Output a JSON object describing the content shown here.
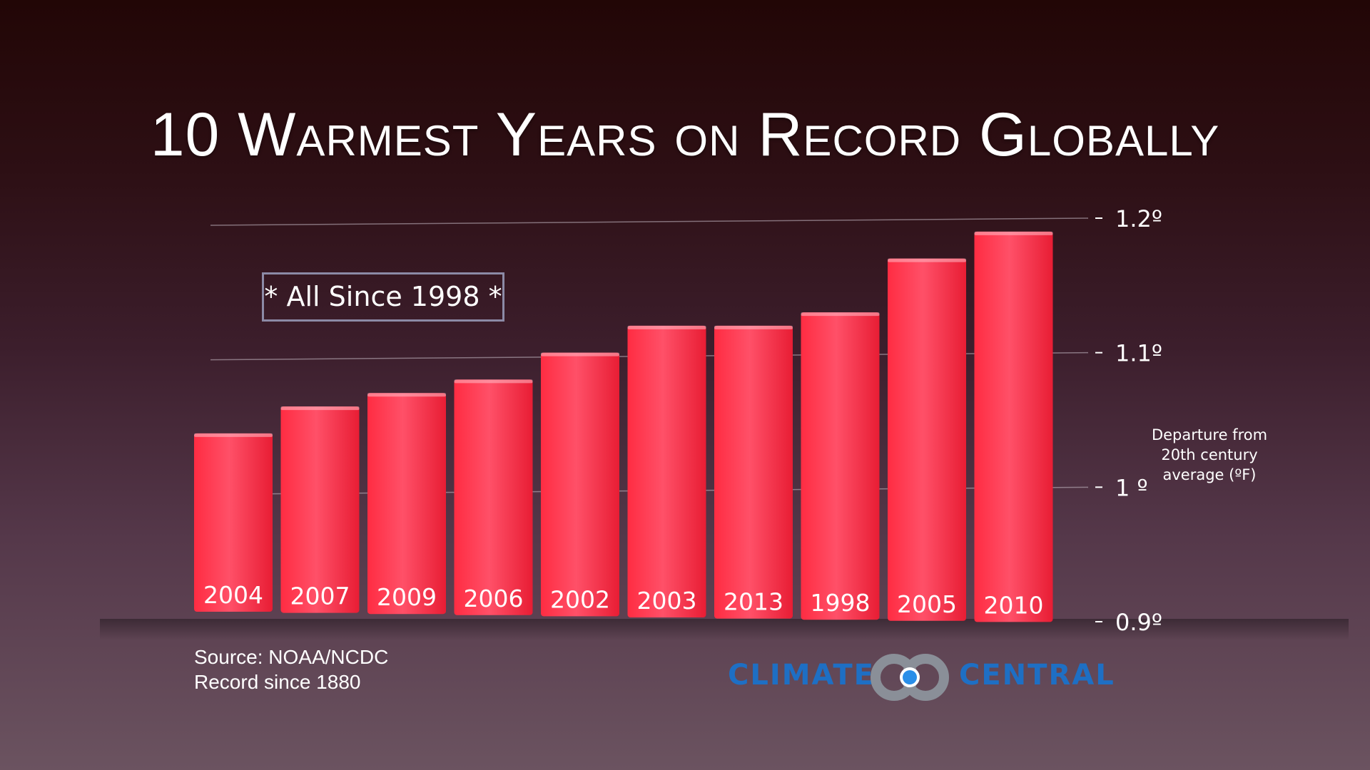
{
  "title": "10 Warmest Years on Record Globally",
  "annotation": "* All Since 1998 *",
  "ylabel": "Departure from 20th century average (ºF)",
  "source": {
    "line1": "Source: NOAA/NCDC",
    "line2": "Record since 1880"
  },
  "logo": {
    "left_word": "CLIMATE",
    "right_word": "CENTRAL",
    "mark_icon": "climate-central-logo-mark",
    "color": "#1e6fc4"
  },
  "chart_data": {
    "type": "bar",
    "categories": [
      "2004",
      "2007",
      "2009",
      "2006",
      "2002",
      "2003",
      "2013",
      "1998",
      "2005",
      "2010"
    ],
    "values": [
      1.04,
      1.06,
      1.07,
      1.08,
      1.1,
      1.12,
      1.12,
      1.13,
      1.17,
      1.19
    ],
    "ylim": [
      0.9,
      1.2
    ],
    "yticks": [
      {
        "value": 0.9,
        "label": "0.9º"
      },
      {
        "value": 1.0,
        "label": "1 º"
      },
      {
        "value": 1.1,
        "label": "1.1º"
      },
      {
        "value": 1.2,
        "label": "1.2º"
      }
    ],
    "grid": true,
    "bar_color": "#ff3b4f"
  }
}
